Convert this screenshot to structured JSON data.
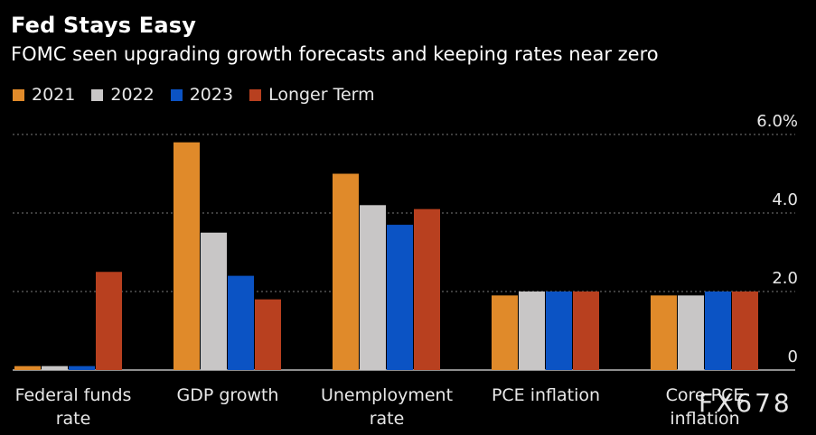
{
  "header": {
    "title": "Fed Stays Easy",
    "subtitle": "FOMC seen upgrading growth forecasts and keeping rates near zero"
  },
  "watermark": "FX678",
  "chart_data": {
    "type": "bar",
    "title": "Fed Stays Easy",
    "subtitle": "FOMC seen upgrading growth forecasts and keeping rates near zero",
    "categories": [
      [
        "Federal funds",
        "rate"
      ],
      [
        "GDP growth"
      ],
      [
        "Unemployment",
        "rate"
      ],
      [
        "PCE inflation"
      ],
      [
        "Core PCE",
        "inflation"
      ]
    ],
    "series": [
      {
        "name": "2021",
        "color": "#E08A2A",
        "values": [
          0.1,
          5.8,
          5.0,
          1.9,
          1.9
        ]
      },
      {
        "name": "2022",
        "color": "#C8C6C6",
        "values": [
          0.1,
          3.5,
          4.2,
          2.0,
          1.9
        ]
      },
      {
        "name": "2023",
        "color": "#0B53C4",
        "values": [
          0.1,
          2.4,
          3.7,
          2.0,
          2.0
        ]
      },
      {
        "name": "Longer Term",
        "color": "#B8401F",
        "values": [
          2.5,
          1.8,
          4.1,
          2.0,
          2.0
        ]
      }
    ],
    "yticks": [
      {
        "value": 0,
        "label": "0"
      },
      {
        "value": 2,
        "label": "2.0"
      },
      {
        "value": 4,
        "label": "4.0"
      },
      {
        "value": 6,
        "label": "6.0%"
      }
    ],
    "ylim": [
      0,
      6
    ],
    "grid": true,
    "legend_position": "top-left"
  }
}
